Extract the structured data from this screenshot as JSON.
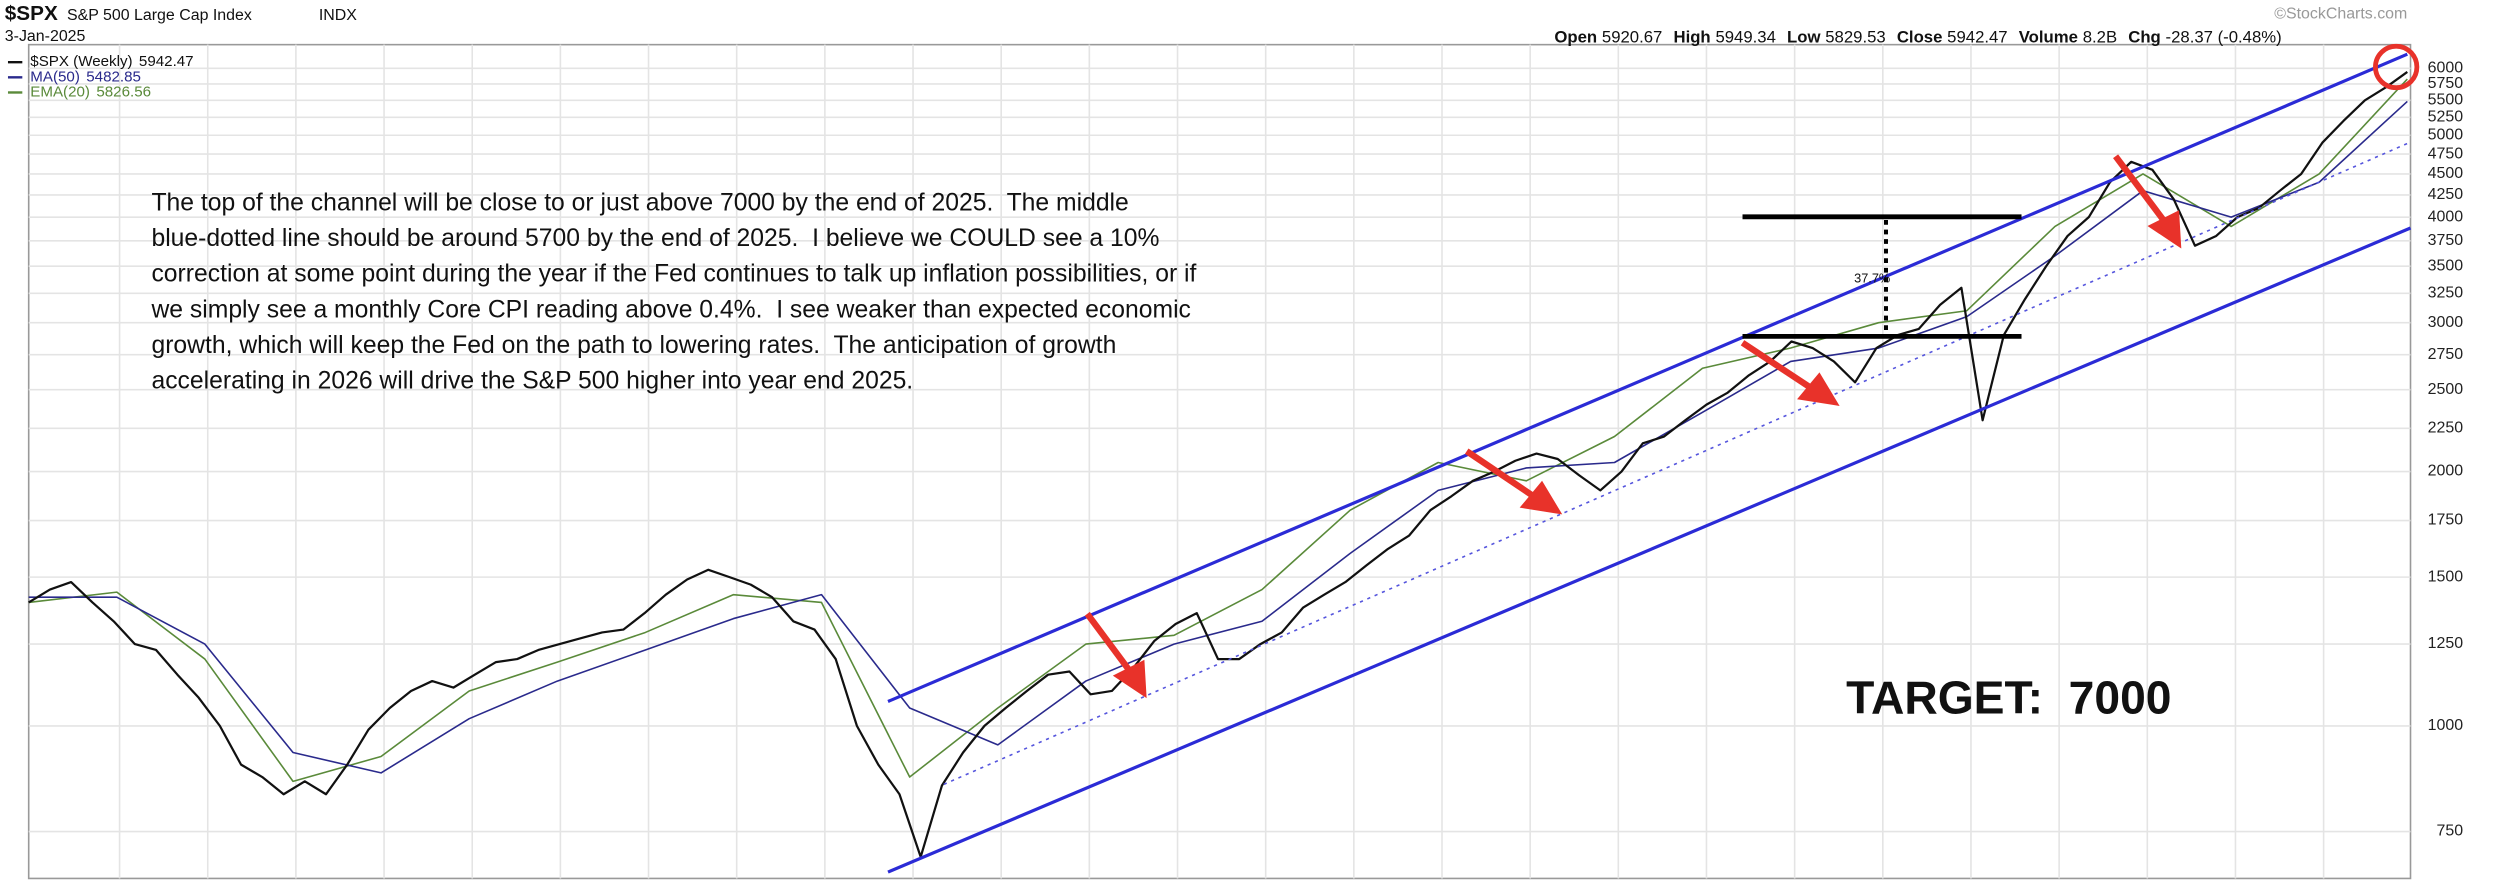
{
  "chart_data": {
    "type": "line",
    "symbol": "$SPX",
    "name": "S&P 500 Large Cap Index",
    "exchange": "INDX",
    "date": "3-Jan-2025",
    "stats": [
      {
        "label": "Open",
        "value": 5920.67
      },
      {
        "label": "High",
        "value": 5949.34
      },
      {
        "label": "Low",
        "value": 5829.53
      },
      {
        "label": "Close",
        "value": 5942.47
      },
      {
        "label": "Volume",
        "value": "8.2B"
      },
      {
        "label": "Chg",
        "value": "-28.37 (-0.48%)"
      }
    ],
    "credit": "©StockCharts.com",
    "log_scale": true,
    "grid": true,
    "ylim": [
      660,
      6400
    ],
    "yticks": [
      750,
      1000,
      1250,
      1500,
      1750,
      2000,
      2250,
      2500,
      2750,
      3000,
      3250,
      3500,
      3750,
      4000,
      4250,
      4500,
      4750,
      5000,
      5250,
      5500,
      5750,
      6000
    ],
    "series": [
      {
        "name": "$SPX (Weekly)",
        "color": "#111111",
        "values": [
          1400,
          1450,
          1480,
          1400,
          1330,
          1250,
          1230,
          1150,
          1080,
          1000,
          900,
          870,
          830,
          860,
          830,
          900,
          990,
          1050,
          1100,
          1130,
          1110,
          1150,
          1190,
          1200,
          1230,
          1250,
          1270,
          1290,
          1300,
          1360,
          1430,
          1490,
          1530,
          1500,
          1470,
          1420,
          1330,
          1300,
          1200,
          1000,
          900,
          830,
          700,
          850,
          930,
          1000,
          1050,
          1100,
          1150,
          1160,
          1090,
          1100,
          1170,
          1260,
          1320,
          1360,
          1200,
          1200,
          1250,
          1290,
          1380,
          1430,
          1480,
          1550,
          1620,
          1680,
          1800,
          1870,
          1950,
          2000,
          2060,
          2100,
          2070,
          1980,
          1900,
          2000,
          2160,
          2200,
          2300,
          2400,
          2480,
          2600,
          2700,
          2850,
          2800,
          2700,
          2550,
          2800,
          2900,
          2950,
          3150,
          3300,
          2300,
          2900,
          3200,
          3500,
          3800,
          4000,
          4400,
          4650,
          4550,
          4200,
          3700,
          3800,
          4000,
          4100,
          4300,
          4500,
          4900,
          5200,
          5500,
          5700,
          5942.47
        ]
      },
      {
        "name": "MA(50)",
        "color": "#2a2a8c",
        "values": [
          1420,
          1420,
          1250,
          930,
          880,
          1020,
          1130,
          1230,
          1340,
          1430,
          1050,
          950,
          1130,
          1250,
          1330,
          1600,
          1900,
          2020,
          2050,
          2350,
          2700,
          2800,
          3050,
          3600,
          4300,
          4000,
          4400,
          5482.85
        ]
      },
      {
        "name": "EMA(20)",
        "color": "#5a8a3a",
        "values": [
          1400,
          1440,
          1200,
          860,
          920,
          1100,
          1190,
          1290,
          1430,
          1400,
          870,
          1050,
          1250,
          1280,
          1450,
          1800,
          2050,
          1950,
          2200,
          2650,
          2800,
          3000,
          3100,
          3900,
          4500,
          3900,
          4500,
          5826.56
        ]
      }
    ],
    "annotations": {
      "commentary": [
        "The top of the channel will be close to or just above 7000 by the end of 2025.  The middle",
        "blue-dotted line should be around 5700 by the end of 2025.  I believe we COULD see a 10%",
        "correction at some point during the year if the Fed continues to talk up inflation possibilities, or if",
        "we simply see a monthly Core CPI reading above 0.4%.  I see weaker than expected economic",
        "growth, which will keep the Fed on the path to lowering rates.  The anticipation of growth",
        "accelerating in 2026 will drive the S&P 500 higher into year end 2025."
      ],
      "range_label": "37.7%",
      "target": "TARGET:  7000"
    }
  }
}
